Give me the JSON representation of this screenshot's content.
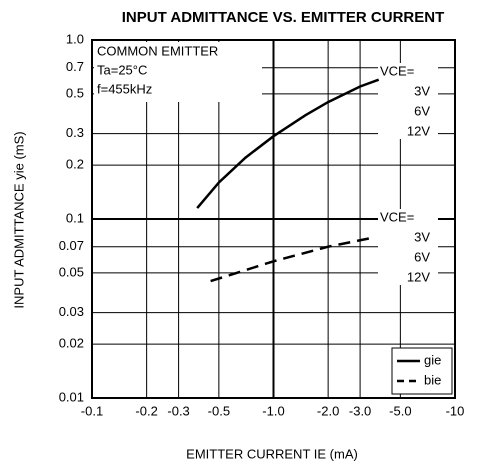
{
  "chart_data": {
    "type": "line",
    "title": "INPUT ADMITTANCE VS. EMITTER CURRENT",
    "x_label": "EMITTER CURRENT   IE (mA)",
    "y_label": "INPUT ADMITTANCE   yie (mS)",
    "x_log": true,
    "y_log": true,
    "grid": true,
    "legend": "lower right",
    "xlim": [
      -0.1,
      -10
    ],
    "ylim": [
      0.01,
      1
    ],
    "xticks": [
      -0.1,
      -0.2,
      -0.3,
      -0.5,
      {
        "value": -1,
        "label": "-1.0"
      },
      {
        "value": -2,
        "label": "-2.0"
      },
      {
        "value": -3,
        "label": "-3.0"
      },
      {
        "value": -5,
        "label": "-5.0"
      },
      -10
    ],
    "yticks": [
      0.01,
      0.02,
      0.03,
      0.05,
      0.07,
      0.1,
      0.2,
      0.3,
      0.5,
      0.7,
      {
        "value": 1,
        "label": "1.0"
      }
    ],
    "series": [
      {
        "name": "gie",
        "color": "#000000",
        "dash": "solid",
        "x": [
          -0.38,
          -0.5,
          -0.7,
          -1.0,
          -1.5,
          -2.0,
          -3.0,
          -3.8
        ],
        "values": [
          0.115,
          0.16,
          0.22,
          0.29,
          0.38,
          0.45,
          0.55,
          0.6
        ]
      },
      {
        "name": "bie",
        "color": "#000000",
        "dash": "dashed",
        "x": [
          -0.45,
          -1.0,
          -2.0,
          -3.4
        ],
        "values": [
          0.045,
          0.058,
          0.07,
          0.078
        ]
      }
    ],
    "annotations": [
      "COMMON EMITTER",
      "Ta=25°C",
      "f=455kHz"
    ],
    "vce_upper": [
      "VCE=",
      "3V",
      "6V",
      "12V"
    ],
    "vce_lower": [
      "VCE=",
      "3V",
      "6V",
      "12V"
    ]
  }
}
